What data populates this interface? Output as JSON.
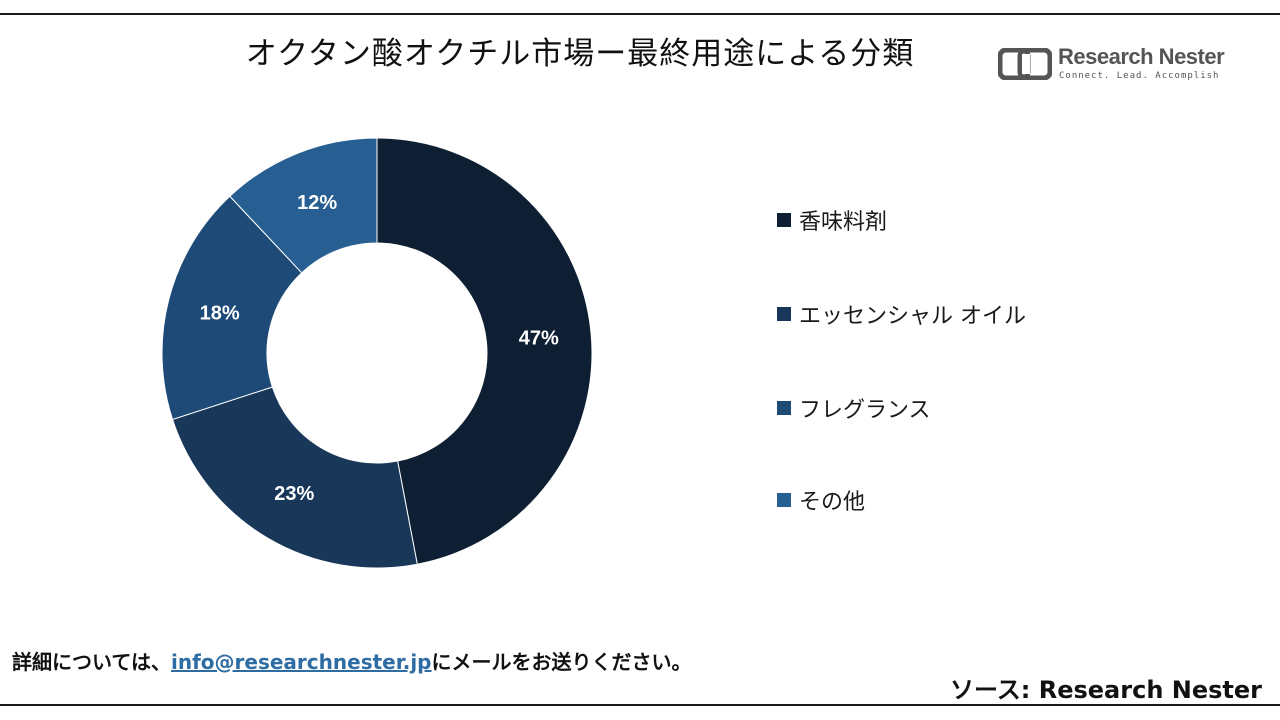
{
  "title": "オクタン酸オクチル市場ー最終用途による分類",
  "logo": {
    "name": "Research Nester",
    "tagline": "Connect. Lead. Accomplish"
  },
  "chart_data": {
    "type": "pie",
    "donut": true,
    "title": "オクタン酸オクチル市場ー最終用途による分類",
    "labels": [
      "香味料剤",
      "エッセンシャル オイル",
      "フレグランス",
      "その他"
    ],
    "values": [
      47,
      23,
      18,
      12
    ],
    "value_labels": [
      "47%",
      "23%",
      "18%",
      "12%"
    ],
    "colors": [
      "#0e1f33",
      "#183759",
      "#1e4a78",
      "#275f92"
    ],
    "legend_position": "right"
  },
  "legend": {
    "items": [
      {
        "label": "香味料剤",
        "color": "#0e1f33"
      },
      {
        "label": "エッセンシャル オイル",
        "color": "#183759"
      },
      {
        "label": "フレグランス",
        "color": "#1e4a78"
      },
      {
        "label": "その他",
        "color": "#275f92"
      }
    ]
  },
  "footer": {
    "prefix": "詳細については、",
    "email": "info@researchnester.jp",
    "suffix": "にメールをお送りください。"
  },
  "source": "ソース: Research Nester"
}
